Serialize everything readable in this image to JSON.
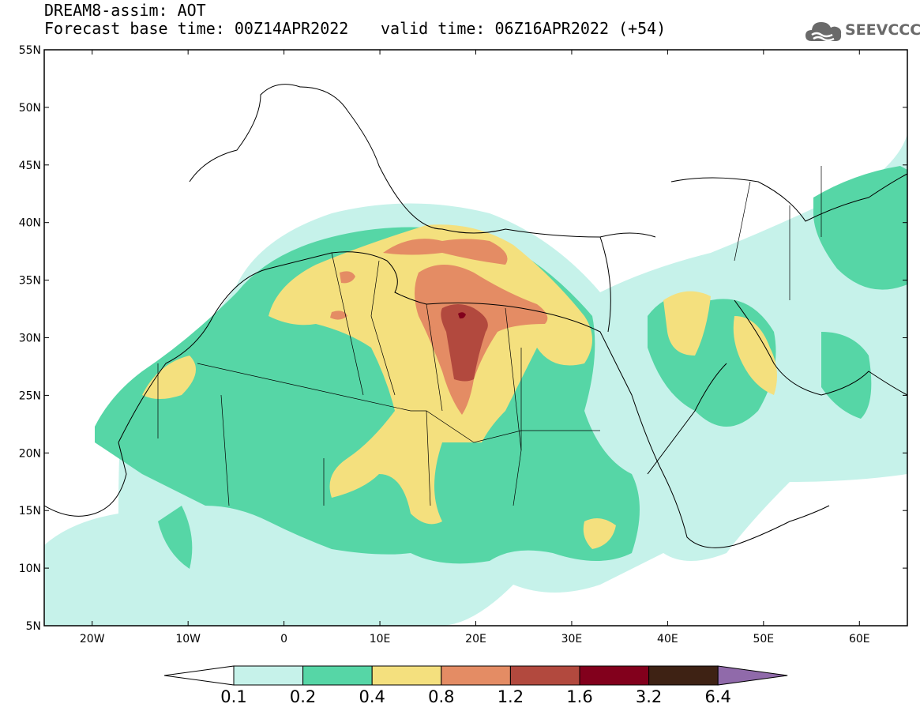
{
  "header": {
    "title_line1": "DREAM8-assim: AOT",
    "title_line2": "Forecast base time: 00Z14APR2022",
    "valid_time": "valid time: 06Z16APR2022 (+54)",
    "logo_text": "SEEVCCC"
  },
  "map": {
    "lon_range": [
      -25,
      65
    ],
    "lat_range": [
      5,
      55
    ],
    "lat_labels": [
      "55N",
      "50N",
      "45N",
      "40N",
      "35N",
      "30N",
      "25N",
      "20N",
      "15N",
      "10N",
      "5N"
    ],
    "lon_labels": [
      "20W",
      "10W",
      "0",
      "10E",
      "20E",
      "30E",
      "40E",
      "50E",
      "60E"
    ],
    "variable": "AOT"
  },
  "colorbar": {
    "labels": [
      "0.1",
      "0.2",
      "0.4",
      "0.8",
      "1.2",
      "1.6",
      "3.2",
      "6.4"
    ],
    "colors": [
      "#c6f2ea",
      "#56d6a6",
      "#f4e07e",
      "#e48c64",
      "#b2493e",
      "#82001c",
      "#3e2214",
      "#906aaa"
    ],
    "under_color": "#ffffff"
  }
}
